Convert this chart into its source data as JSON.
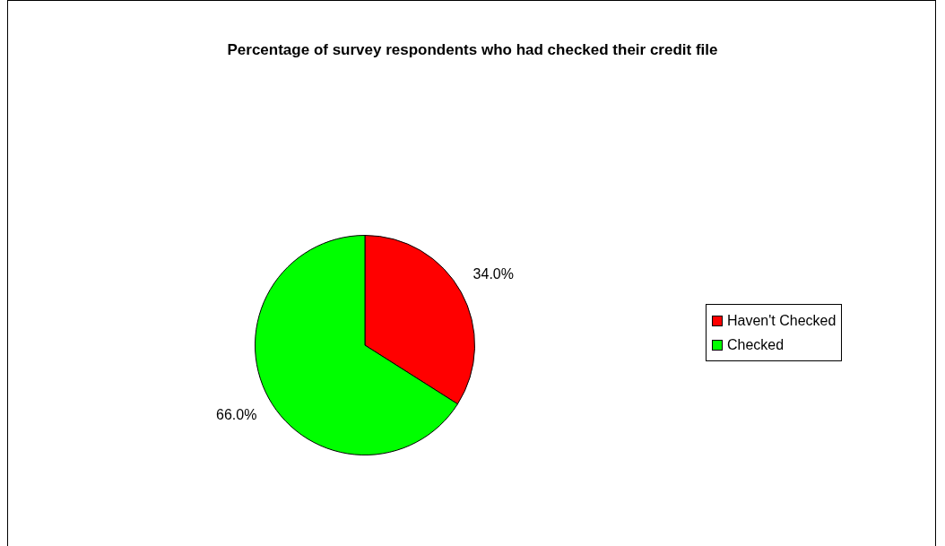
{
  "chart_data": {
    "type": "pie",
    "title": "Percentage of survey respondents who had checked their credit file",
    "categories": [
      "Haven't Checked",
      "Checked"
    ],
    "values": [
      34.0,
      66.0
    ],
    "colors": [
      "#ff0000",
      "#00ff00"
    ],
    "value_labels": [
      "34.0%",
      "66.0%"
    ],
    "legend": "right"
  }
}
